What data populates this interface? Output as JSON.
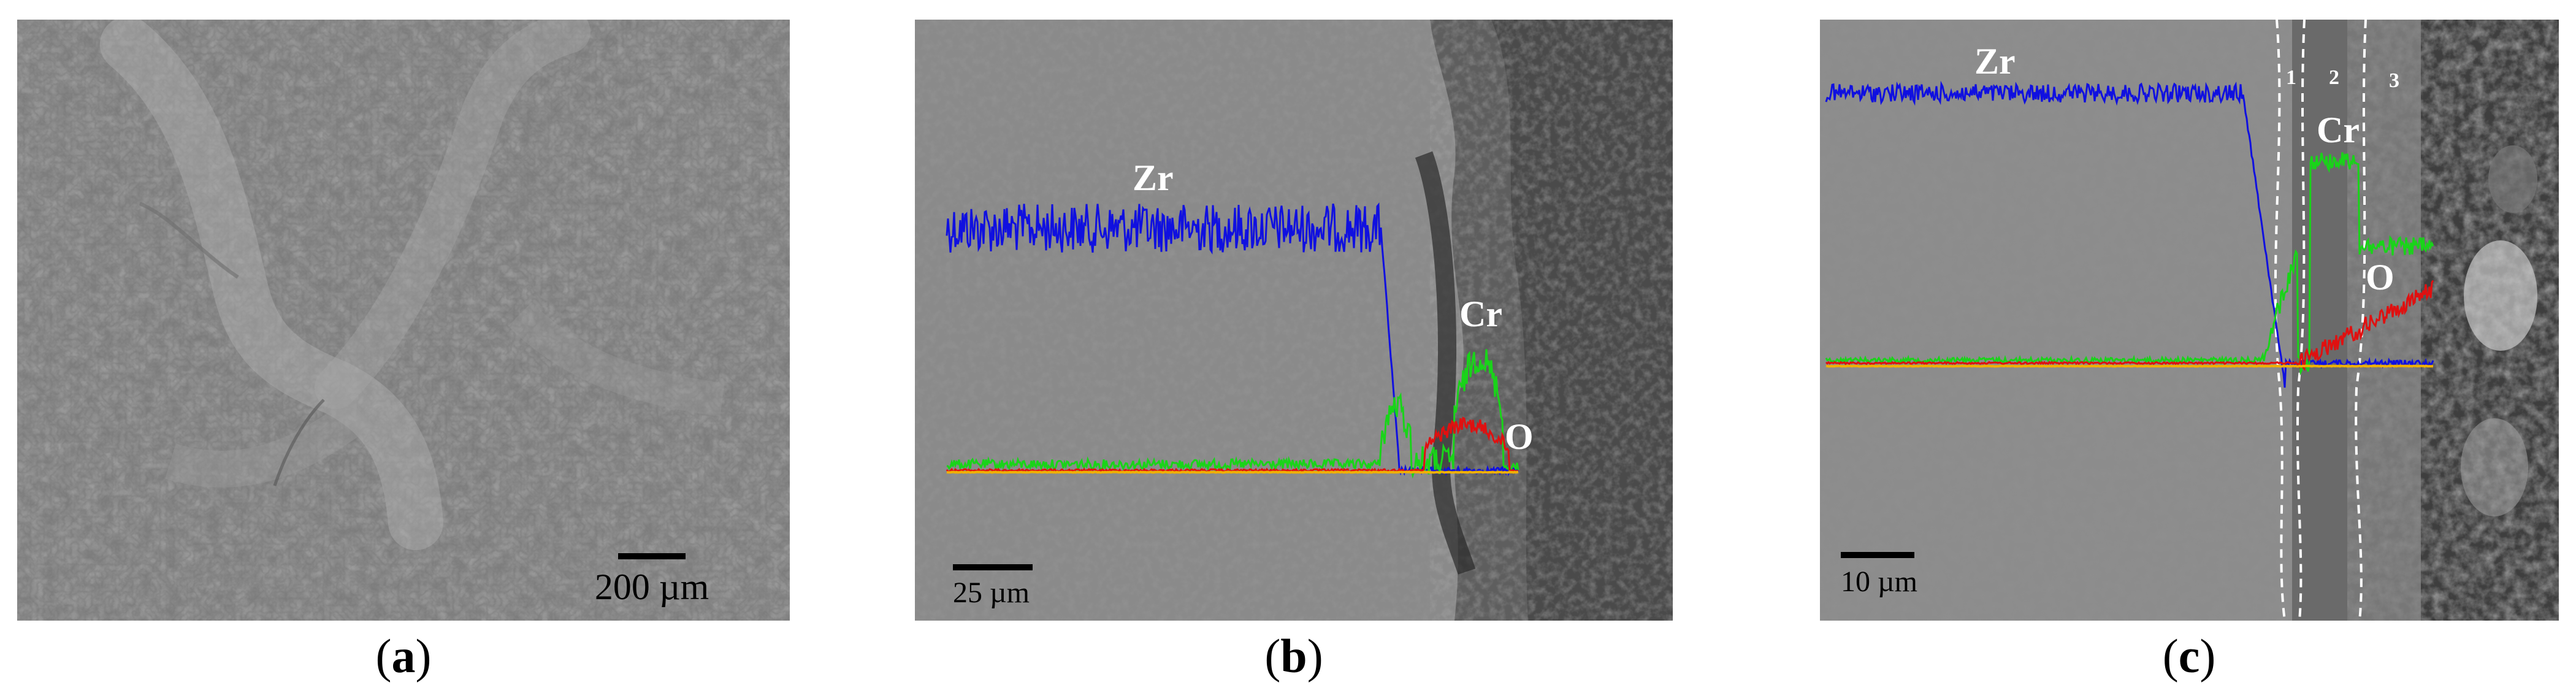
{
  "panels": [
    {
      "id": "a",
      "scale_bar": "200 µm"
    },
    {
      "id": "b",
      "scale_bar": "25 µm",
      "labels": {
        "zr": "Zr",
        "cr": "Cr",
        "o": "O"
      }
    },
    {
      "id": "c",
      "scale_bar": "10 µm",
      "labels": {
        "zr": "Zr",
        "cr": "Cr",
        "o": "O"
      },
      "zones": [
        "1",
        "2",
        "3"
      ]
    }
  ],
  "captions": [
    {
      "open": "(",
      "letter": "a",
      "close": ")"
    },
    {
      "open": "(",
      "letter": "b",
      "close": ")"
    },
    {
      "open": "(",
      "letter": "c",
      "close": ")"
    }
  ],
  "colors": {
    "zr": "#1010e0",
    "cr": "#19d419",
    "o": "#e01010",
    "baseline": "#f0b000"
  }
}
